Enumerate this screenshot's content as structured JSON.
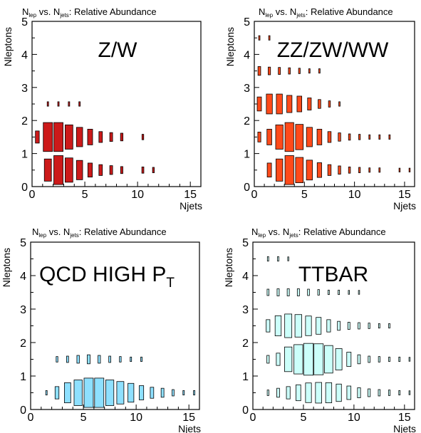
{
  "chart_data": [
    {
      "type": "heatmap",
      "title": {
        "n1": "N",
        "s1": "lep",
        "mid": " vs. N",
        "s2": "jets",
        "end": ": Relative Abundance"
      },
      "label": "Z/W",
      "xlabel": "Njets",
      "ylabel": "Nleptons",
      "xlim": [
        0,
        16
      ],
      "ylim": [
        0,
        5
      ],
      "xticks": [
        "0",
        "5",
        "10",
        "15"
      ],
      "yticks": [
        "0",
        "1",
        "2",
        "3",
        "4",
        "5"
      ],
      "fill": "#cc1a1a",
      "points": [
        {
          "x": 0.5,
          "y": 1.5,
          "w": 0.15
        },
        {
          "x": 1.5,
          "y": 1.5,
          "w": 0.85
        },
        {
          "x": 2.5,
          "y": 1.5,
          "w": 0.85
        },
        {
          "x": 3.5,
          "y": 1.5,
          "w": 0.6
        },
        {
          "x": 4.5,
          "y": 1.5,
          "w": 0.38
        },
        {
          "x": 5.5,
          "y": 1.5,
          "w": 0.25
        },
        {
          "x": 6.5,
          "y": 1.5,
          "w": 0.12
        },
        {
          "x": 7.5,
          "y": 1.5,
          "w": 0.08
        },
        {
          "x": 8.5,
          "y": 1.5,
          "w": 0.06
        },
        {
          "x": 10.5,
          "y": 1.5,
          "w": 0.03
        },
        {
          "x": 1.5,
          "y": 0.5,
          "w": 0.5
        },
        {
          "x": 2.5,
          "y": 0.5,
          "w": 0.85
        },
        {
          "x": 3.5,
          "y": 0.5,
          "w": 0.6
        },
        {
          "x": 4.5,
          "y": 0.5,
          "w": 0.38
        },
        {
          "x": 5.5,
          "y": 0.5,
          "w": 0.2
        },
        {
          "x": 6.5,
          "y": 0.5,
          "w": 0.12
        },
        {
          "x": 7.5,
          "y": 0.5,
          "w": 0.08
        },
        {
          "x": 8.5,
          "y": 0.5,
          "w": 0.05
        },
        {
          "x": 10.5,
          "y": 0.5,
          "w": 0.04
        },
        {
          "x": 11.5,
          "y": 0.5,
          "w": 0.03
        },
        {
          "x": 1.5,
          "y": 2.5,
          "w": 0.02
        },
        {
          "x": 2.5,
          "y": 2.5,
          "w": 0.02
        },
        {
          "x": 3.5,
          "y": 2.5,
          "w": 0.02
        },
        {
          "x": 4.5,
          "y": 2.5,
          "w": 0.02
        }
      ]
    },
    {
      "type": "heatmap",
      "title": {
        "n1": "N",
        "s1": "lep",
        "mid": " vs. N",
        "s2": "jets",
        "end": ": Relative Abundance"
      },
      "label": "ZZ/ZW/WW",
      "xlabel": "Njets",
      "ylabel": "Nleptons",
      "xlim": [
        0,
        16
      ],
      "ylim": [
        0,
        5
      ],
      "xticks": [
        "0",
        "5",
        "10",
        "15"
      ],
      "yticks": [
        "0",
        "1",
        "2",
        "3",
        "4",
        "5"
      ],
      "fill": "#ff4a1a",
      "points": [
        {
          "x": 0.5,
          "y": 4.5,
          "w": 0.02
        },
        {
          "x": 1.5,
          "y": 4.5,
          "w": 0.02
        },
        {
          "x": 0.5,
          "y": 3.5,
          "w": 0.08
        },
        {
          "x": 1.5,
          "y": 3.5,
          "w": 0.06
        },
        {
          "x": 2.5,
          "y": 3.5,
          "w": 0.05
        },
        {
          "x": 3.5,
          "y": 3.5,
          "w": 0.04
        },
        {
          "x": 4.5,
          "y": 3.5,
          "w": 0.03
        },
        {
          "x": 5.5,
          "y": 3.5,
          "w": 0.02
        },
        {
          "x": 6.5,
          "y": 3.5,
          "w": 0.02
        },
        {
          "x": 0.5,
          "y": 2.5,
          "w": 0.2
        },
        {
          "x": 1.5,
          "y": 2.5,
          "w": 0.4
        },
        {
          "x": 2.5,
          "y": 2.5,
          "w": 0.4
        },
        {
          "x": 3.5,
          "y": 2.5,
          "w": 0.3
        },
        {
          "x": 4.5,
          "y": 2.5,
          "w": 0.25
        },
        {
          "x": 5.5,
          "y": 2.5,
          "w": 0.15
        },
        {
          "x": 6.5,
          "y": 2.5,
          "w": 0.08
        },
        {
          "x": 7.5,
          "y": 2.5,
          "w": 0.04
        },
        {
          "x": 8.5,
          "y": 2.5,
          "w": 0.02
        },
        {
          "x": 0.5,
          "y": 1.5,
          "w": 0.1
        },
        {
          "x": 1.5,
          "y": 1.5,
          "w": 0.25
        },
        {
          "x": 2.5,
          "y": 1.5,
          "w": 0.6
        },
        {
          "x": 3.5,
          "y": 1.5,
          "w": 0.85
        },
        {
          "x": 4.5,
          "y": 1.5,
          "w": 0.65
        },
        {
          "x": 5.5,
          "y": 1.5,
          "w": 0.38
        },
        {
          "x": 6.5,
          "y": 1.5,
          "w": 0.25
        },
        {
          "x": 7.5,
          "y": 1.5,
          "w": 0.12
        },
        {
          "x": 8.5,
          "y": 1.5,
          "w": 0.07
        },
        {
          "x": 9.5,
          "y": 1.5,
          "w": 0.04
        },
        {
          "x": 10.5,
          "y": 1.5,
          "w": 0.03
        },
        {
          "x": 11.5,
          "y": 1.5,
          "w": 0.02
        },
        {
          "x": 12.5,
          "y": 1.5,
          "w": 0.02
        },
        {
          "x": 13.5,
          "y": 1.5,
          "w": 0.02
        },
        {
          "x": 1.5,
          "y": 0.5,
          "w": 0.2
        },
        {
          "x": 2.5,
          "y": 0.5,
          "w": 0.5
        },
        {
          "x": 3.5,
          "y": 0.5,
          "w": 0.85
        },
        {
          "x": 4.5,
          "y": 0.5,
          "w": 0.65
        },
        {
          "x": 5.5,
          "y": 0.5,
          "w": 0.4
        },
        {
          "x": 6.5,
          "y": 0.5,
          "w": 0.22
        },
        {
          "x": 7.5,
          "y": 0.5,
          "w": 0.12
        },
        {
          "x": 8.5,
          "y": 0.5,
          "w": 0.07
        },
        {
          "x": 9.5,
          "y": 0.5,
          "w": 0.04
        },
        {
          "x": 10.5,
          "y": 0.5,
          "w": 0.03
        },
        {
          "x": 11.5,
          "y": 0.5,
          "w": 0.02
        },
        {
          "x": 12.5,
          "y": 0.5,
          "w": 0.02
        },
        {
          "x": 14.5,
          "y": 0.5,
          "w": 0.015
        },
        {
          "x": 15.5,
          "y": 0.5,
          "w": 0.015
        }
      ]
    },
    {
      "type": "heatmap",
      "title": {
        "n1": "N",
        "s1": "lep",
        "mid": " vs. N",
        "s2": "jets",
        "end": ": Relative Abundance"
      },
      "label": "QCD HIGH P",
      "label_sub": "T",
      "xlabel": "Njets",
      "ylabel": "Nleptons",
      "xlim": [
        0,
        16
      ],
      "ylim": [
        0,
        5
      ],
      "xticks": [
        "0",
        "5",
        "10",
        "15"
      ],
      "yticks": [
        "0",
        "1",
        "2",
        "3",
        "4",
        "5"
      ],
      "fill": "#8ee0ff",
      "points": [
        {
          "x": 1.5,
          "y": 0.5,
          "w": 0.02
        },
        {
          "x": 2.5,
          "y": 0.5,
          "w": 0.15
        },
        {
          "x": 3.5,
          "y": 0.5,
          "w": 0.4
        },
        {
          "x": 4.5,
          "y": 0.5,
          "w": 0.65
        },
        {
          "x": 5.5,
          "y": 0.5,
          "w": 0.85
        },
        {
          "x": 6.5,
          "y": 0.5,
          "w": 0.85
        },
        {
          "x": 7.5,
          "y": 0.5,
          "w": 0.65
        },
        {
          "x": 8.5,
          "y": 0.5,
          "w": 0.5
        },
        {
          "x": 9.5,
          "y": 0.5,
          "w": 0.35
        },
        {
          "x": 10.5,
          "y": 0.5,
          "w": 0.2
        },
        {
          "x": 11.5,
          "y": 0.5,
          "w": 0.12
        },
        {
          "x": 12.5,
          "y": 0.5,
          "w": 0.08
        },
        {
          "x": 13.5,
          "y": 0.5,
          "w": 0.04
        },
        {
          "x": 14.5,
          "y": 0.5,
          "w": 0.02
        },
        {
          "x": 15.5,
          "y": 0.5,
          "w": 0.02
        },
        {
          "x": 2.5,
          "y": 1.5,
          "w": 0.03
        },
        {
          "x": 3.5,
          "y": 1.5,
          "w": 0.04
        },
        {
          "x": 4.5,
          "y": 1.5,
          "w": 0.06
        },
        {
          "x": 5.5,
          "y": 1.5,
          "w": 0.08
        },
        {
          "x": 6.5,
          "y": 1.5,
          "w": 0.06
        },
        {
          "x": 7.5,
          "y": 1.5,
          "w": 0.04
        },
        {
          "x": 8.5,
          "y": 1.5,
          "w": 0.03
        },
        {
          "x": 9.5,
          "y": 1.5,
          "w": 0.02
        },
        {
          "x": 10.5,
          "y": 1.5,
          "w": 0.02
        }
      ]
    },
    {
      "type": "heatmap",
      "title": {
        "n1": "N",
        "s1": "lep",
        "mid": " vs. N",
        "s2": "jets",
        "end": ": Relative Abundance"
      },
      "label": "TTBAR",
      "xlabel": "Njets",
      "ylabel": "Nleptons",
      "xlim": [
        0,
        16
      ],
      "ylim": [
        0,
        5
      ],
      "xticks": [
        "0",
        "5",
        "10",
        "15"
      ],
      "yticks": [
        "0",
        "1",
        "2",
        "3",
        "4",
        "5"
      ],
      "fill": "#ccfffa",
      "points": [
        {
          "x": 1.5,
          "y": 4.5,
          "w": 0.02
        },
        {
          "x": 2.5,
          "y": 4.5,
          "w": 0.02
        },
        {
          "x": 3.5,
          "y": 4.5,
          "w": 0.015
        },
        {
          "x": 1.5,
          "y": 3.5,
          "w": 0.04
        },
        {
          "x": 2.5,
          "y": 3.5,
          "w": 0.05
        },
        {
          "x": 3.5,
          "y": 3.5,
          "w": 0.05
        },
        {
          "x": 4.5,
          "y": 3.5,
          "w": 0.05
        },
        {
          "x": 5.5,
          "y": 3.5,
          "w": 0.04
        },
        {
          "x": 6.5,
          "y": 3.5,
          "w": 0.03
        },
        {
          "x": 7.5,
          "y": 3.5,
          "w": 0.02
        },
        {
          "x": 8.5,
          "y": 3.5,
          "w": 0.02
        },
        {
          "x": 9.5,
          "y": 3.5,
          "w": 0.015
        },
        {
          "x": 10.5,
          "y": 3.5,
          "w": 0.015
        },
        {
          "x": 1.5,
          "y": 2.5,
          "w": 0.15
        },
        {
          "x": 2.5,
          "y": 2.5,
          "w": 0.4
        },
        {
          "x": 3.5,
          "y": 2.5,
          "w": 0.55
        },
        {
          "x": 4.5,
          "y": 2.5,
          "w": 0.5
        },
        {
          "x": 5.5,
          "y": 2.5,
          "w": 0.38
        },
        {
          "x": 6.5,
          "y": 2.5,
          "w": 0.28
        },
        {
          "x": 7.5,
          "y": 2.5,
          "w": 0.15
        },
        {
          "x": 8.5,
          "y": 2.5,
          "w": 0.08
        },
        {
          "x": 9.5,
          "y": 2.5,
          "w": 0.05
        },
        {
          "x": 10.5,
          "y": 2.5,
          "w": 0.04
        },
        {
          "x": 11.5,
          "y": 2.5,
          "w": 0.03
        },
        {
          "x": 12.5,
          "y": 2.5,
          "w": 0.02
        },
        {
          "x": 13.5,
          "y": 2.5,
          "w": 0.02
        },
        {
          "x": 1.5,
          "y": 1.5,
          "w": 0.06
        },
        {
          "x": 2.5,
          "y": 1.5,
          "w": 0.15
        },
        {
          "x": 3.5,
          "y": 1.5,
          "w": 0.6
        },
        {
          "x": 4.5,
          "y": 1.5,
          "w": 0.85
        },
        {
          "x": 5.5,
          "y": 1.5,
          "w": 1.0
        },
        {
          "x": 6.5,
          "y": 1.5,
          "w": 0.95
        },
        {
          "x": 7.5,
          "y": 1.5,
          "w": 0.75
        },
        {
          "x": 8.5,
          "y": 1.5,
          "w": 0.45
        },
        {
          "x": 9.5,
          "y": 1.5,
          "w": 0.2
        },
        {
          "x": 10.5,
          "y": 1.5,
          "w": 0.08
        },
        {
          "x": 11.5,
          "y": 1.5,
          "w": 0.04
        },
        {
          "x": 12.5,
          "y": 1.5,
          "w": 0.03
        },
        {
          "x": 13.5,
          "y": 1.5,
          "w": 0.02
        },
        {
          "x": 14.5,
          "y": 1.5,
          "w": 0.02
        },
        {
          "x": 15.5,
          "y": 1.5,
          "w": 0.015
        },
        {
          "x": 1.5,
          "y": 0.5,
          "w": 0.03
        },
        {
          "x": 2.5,
          "y": 0.5,
          "w": 0.08
        },
        {
          "x": 3.5,
          "y": 0.5,
          "w": 0.15
        },
        {
          "x": 4.5,
          "y": 0.5,
          "w": 0.25
        },
        {
          "x": 5.5,
          "y": 0.5,
          "w": 0.38
        },
        {
          "x": 6.5,
          "y": 0.5,
          "w": 0.42
        },
        {
          "x": 7.5,
          "y": 0.5,
          "w": 0.4
        },
        {
          "x": 8.5,
          "y": 0.5,
          "w": 0.3
        },
        {
          "x": 9.5,
          "y": 0.5,
          "w": 0.18
        },
        {
          "x": 10.5,
          "y": 0.5,
          "w": 0.1
        },
        {
          "x": 11.5,
          "y": 0.5,
          "w": 0.06
        },
        {
          "x": 12.5,
          "y": 0.5,
          "w": 0.04
        },
        {
          "x": 13.5,
          "y": 0.5,
          "w": 0.03
        },
        {
          "x": 14.5,
          "y": 0.5,
          "w": 0.02
        },
        {
          "x": 15.5,
          "y": 0.5,
          "w": 0.015
        }
      ]
    }
  ]
}
